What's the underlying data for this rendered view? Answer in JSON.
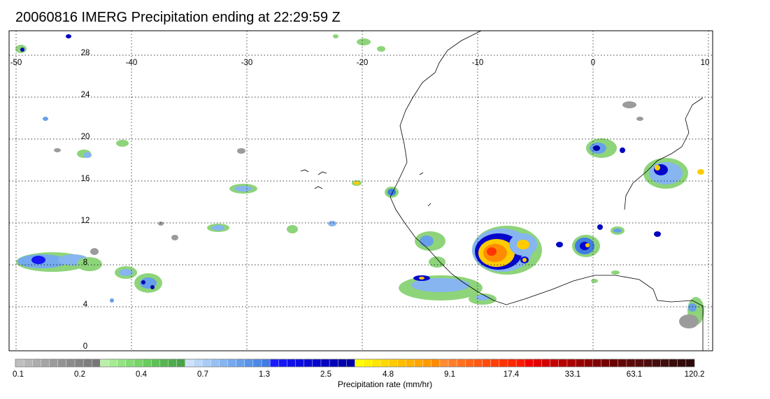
{
  "title": "20060816 IMERG Precipitation ending at 22:29:59 Z",
  "map": {
    "lon_ticks": [
      "-50",
      "-40",
      "-30",
      "-20",
      "-10",
      "0",
      "10"
    ],
    "lat_ticks": [
      "28",
      "24",
      "20",
      "16",
      "12",
      "8",
      "4",
      "0"
    ],
    "lon_range": [
      -50,
      10
    ],
    "lat_range": [
      -0.5,
      29
    ],
    "grid": "dotted"
  },
  "colorbar": {
    "title": "Precipitation rate (mm/hr)",
    "labels": [
      "0.1",
      "0.2",
      "0.4",
      "0.7",
      "1.3",
      "2.5",
      "4.8",
      "9.1",
      "17.4",
      "33.1",
      "63.1",
      "120.2"
    ],
    "colors": [
      "#bfbfbf",
      "#b6b6b6",
      "#adadad",
      "#a4a4a4",
      "#9b9b9b",
      "#939393",
      "#8b8b8b",
      "#848484",
      "#7e7e7e",
      "#777777",
      "#b9f0a8",
      "#a6eb93",
      "#95e384",
      "#85dc76",
      "#76d468",
      "#6acb5e",
      "#60c058",
      "#57b652",
      "#4fac4d",
      "#48a349",
      "#cfe1fa",
      "#bcd6f8",
      "#a9cbf6",
      "#97c0f3",
      "#86b5f0",
      "#76aaee",
      "#679feb",
      "#5993e8",
      "#4c88e5",
      "#3f7de2",
      "#1a1aff",
      "#1515f5",
      "#1010eb",
      "#0c0ce0",
      "#0909d6",
      "#0606cb",
      "#0404c1",
      "#0303b6",
      "#0202ac",
      "#0101a1",
      "#ffff00",
      "#fff200",
      "#ffe600",
      "#ffd900",
      "#ffcc00",
      "#ffbf00",
      "#ffb200",
      "#ffa500",
      "#ff9900",
      "#ff8c00",
      "#ff8c33",
      "#ff7f2a",
      "#ff7222",
      "#ff661a",
      "#ff5913",
      "#ff4c0d",
      "#ff3f08",
      "#ff3304",
      "#ff2602",
      "#ff1900",
      "#f20000",
      "#e30000",
      "#d40000",
      "#c50000",
      "#b70000",
      "#a90000",
      "#9b0000",
      "#8e0000",
      "#810000",
      "#750000",
      "#6b0000",
      "#640707",
      "#5c0a0a",
      "#550c0c",
      "#4e0d0d",
      "#470d0d",
      "#400c0c",
      "#390b0b",
      "#330a0a",
      "#2d0909"
    ]
  }
}
